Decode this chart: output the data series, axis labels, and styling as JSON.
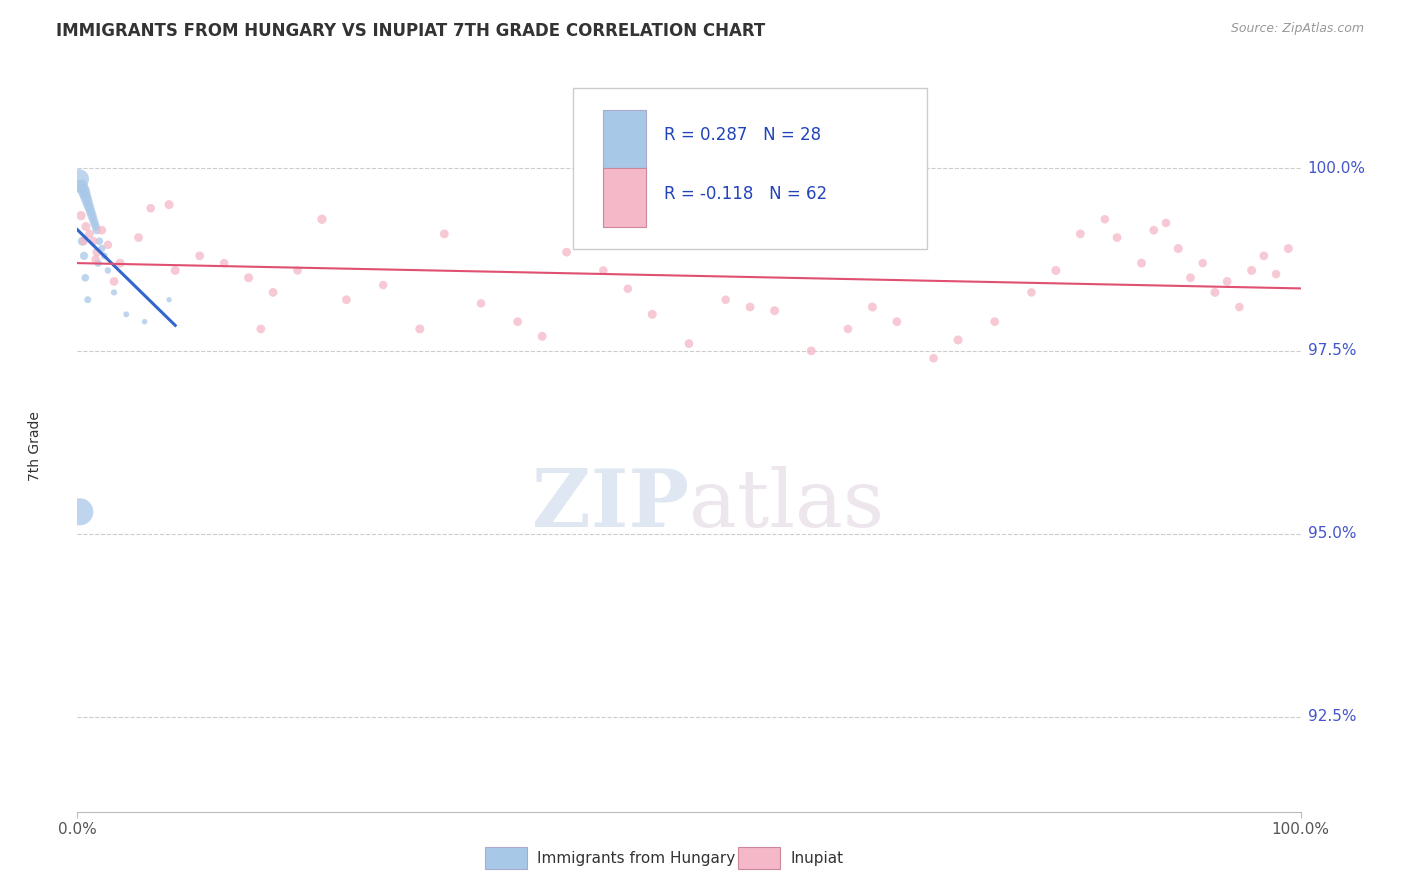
{
  "title": "IMMIGRANTS FROM HUNGARY VS INUPIAT 7TH GRADE CORRELATION CHART",
  "source": "Source: ZipAtlas.com",
  "ylabel": "7th Grade",
  "legend_blue_r": "R = 0.287",
  "legend_blue_n": "N = 28",
  "legend_pink_r": "R = -0.118",
  "legend_pink_n": "N = 62",
  "legend_label_blue": "Immigrants from Hungary",
  "legend_label_pink": "Inupiat",
  "blue_color": "#a8c8e8",
  "pink_color": "#f4b8c8",
  "blue_line_color": "#3366cc",
  "pink_line_color": "#e05070",
  "ytick_values": [
    92.5,
    95.0,
    97.5,
    100.0
  ],
  "ymin": 91.2,
  "ymax": 101.2,
  "xmin": 0.0,
  "xmax": 100.0,
  "blue_x": [
    0.15,
    0.3,
    0.5,
    0.6,
    0.7,
    0.8,
    0.9,
    1.0,
    1.1,
    1.2,
    1.3,
    1.4,
    1.5,
    1.6,
    1.8,
    2.0,
    2.2,
    2.5,
    3.0,
    4.0,
    5.5,
    7.5,
    0.4,
    0.55,
    0.65,
    0.85,
    0.2,
    1.7
  ],
  "blue_y": [
    99.85,
    99.75,
    99.7,
    99.65,
    99.6,
    99.55,
    99.5,
    99.45,
    99.4,
    99.35,
    99.3,
    99.25,
    99.2,
    99.15,
    99.0,
    98.9,
    98.8,
    98.6,
    98.3,
    98.0,
    97.9,
    98.2,
    99.0,
    98.8,
    98.5,
    98.2,
    95.3,
    98.7
  ],
  "blue_sizes": [
    200,
    100,
    80,
    70,
    65,
    60,
    55,
    50,
    48,
    45,
    42,
    40,
    38,
    35,
    30,
    28,
    25,
    22,
    20,
    18,
    16,
    15,
    40,
    35,
    30,
    25,
    380,
    28
  ],
  "pink_x": [
    0.3,
    0.7,
    1.0,
    1.3,
    1.6,
    2.0,
    2.5,
    3.5,
    5.0,
    6.0,
    7.5,
    10.0,
    12.0,
    14.0,
    16.0,
    18.0,
    20.0,
    22.0,
    25.0,
    28.0,
    30.0,
    33.0,
    36.0,
    38.0,
    40.0,
    43.0,
    47.0,
    50.0,
    53.0,
    57.0,
    60.0,
    63.0,
    65.0,
    67.0,
    70.0,
    72.0,
    75.0,
    78.0,
    80.0,
    82.0,
    84.0,
    85.0,
    87.0,
    88.0,
    89.0,
    90.0,
    91.0,
    92.0,
    93.0,
    94.0,
    95.0,
    96.0,
    97.0,
    98.0,
    99.0,
    0.5,
    1.5,
    3.0,
    8.0,
    15.0,
    45.0,
    55.0
  ],
  "pink_y": [
    99.35,
    99.2,
    99.1,
    99.0,
    98.85,
    99.15,
    98.95,
    98.7,
    99.05,
    99.45,
    99.5,
    98.8,
    98.7,
    98.5,
    98.3,
    98.6,
    99.3,
    98.2,
    98.4,
    97.8,
    99.1,
    98.15,
    97.9,
    97.7,
    98.85,
    98.6,
    98.0,
    97.6,
    98.2,
    98.05,
    97.5,
    97.8,
    98.1,
    97.9,
    97.4,
    97.65,
    97.9,
    98.3,
    98.6,
    99.1,
    99.3,
    99.05,
    98.7,
    99.15,
    99.25,
    98.9,
    98.5,
    98.7,
    98.3,
    98.45,
    98.1,
    98.6,
    98.8,
    98.55,
    98.9,
    99.0,
    98.75,
    98.45,
    98.6,
    97.8,
    98.35,
    98.1
  ],
  "pink_sizes": [
    45,
    42,
    40,
    38,
    42,
    40,
    38,
    42,
    40,
    38,
    42,
    40,
    38,
    42,
    40,
    38,
    45,
    40,
    38,
    42,
    40,
    38,
    40,
    42,
    40,
    38,
    42,
    40,
    38,
    42,
    40,
    38,
    42,
    40,
    38,
    42,
    40,
    38,
    42,
    40,
    38,
    40,
    42,
    40,
    38,
    42,
    40,
    38,
    42,
    40,
    38,
    42,
    40,
    38,
    42,
    40,
    38,
    40,
    42,
    40,
    38,
    40
  ]
}
